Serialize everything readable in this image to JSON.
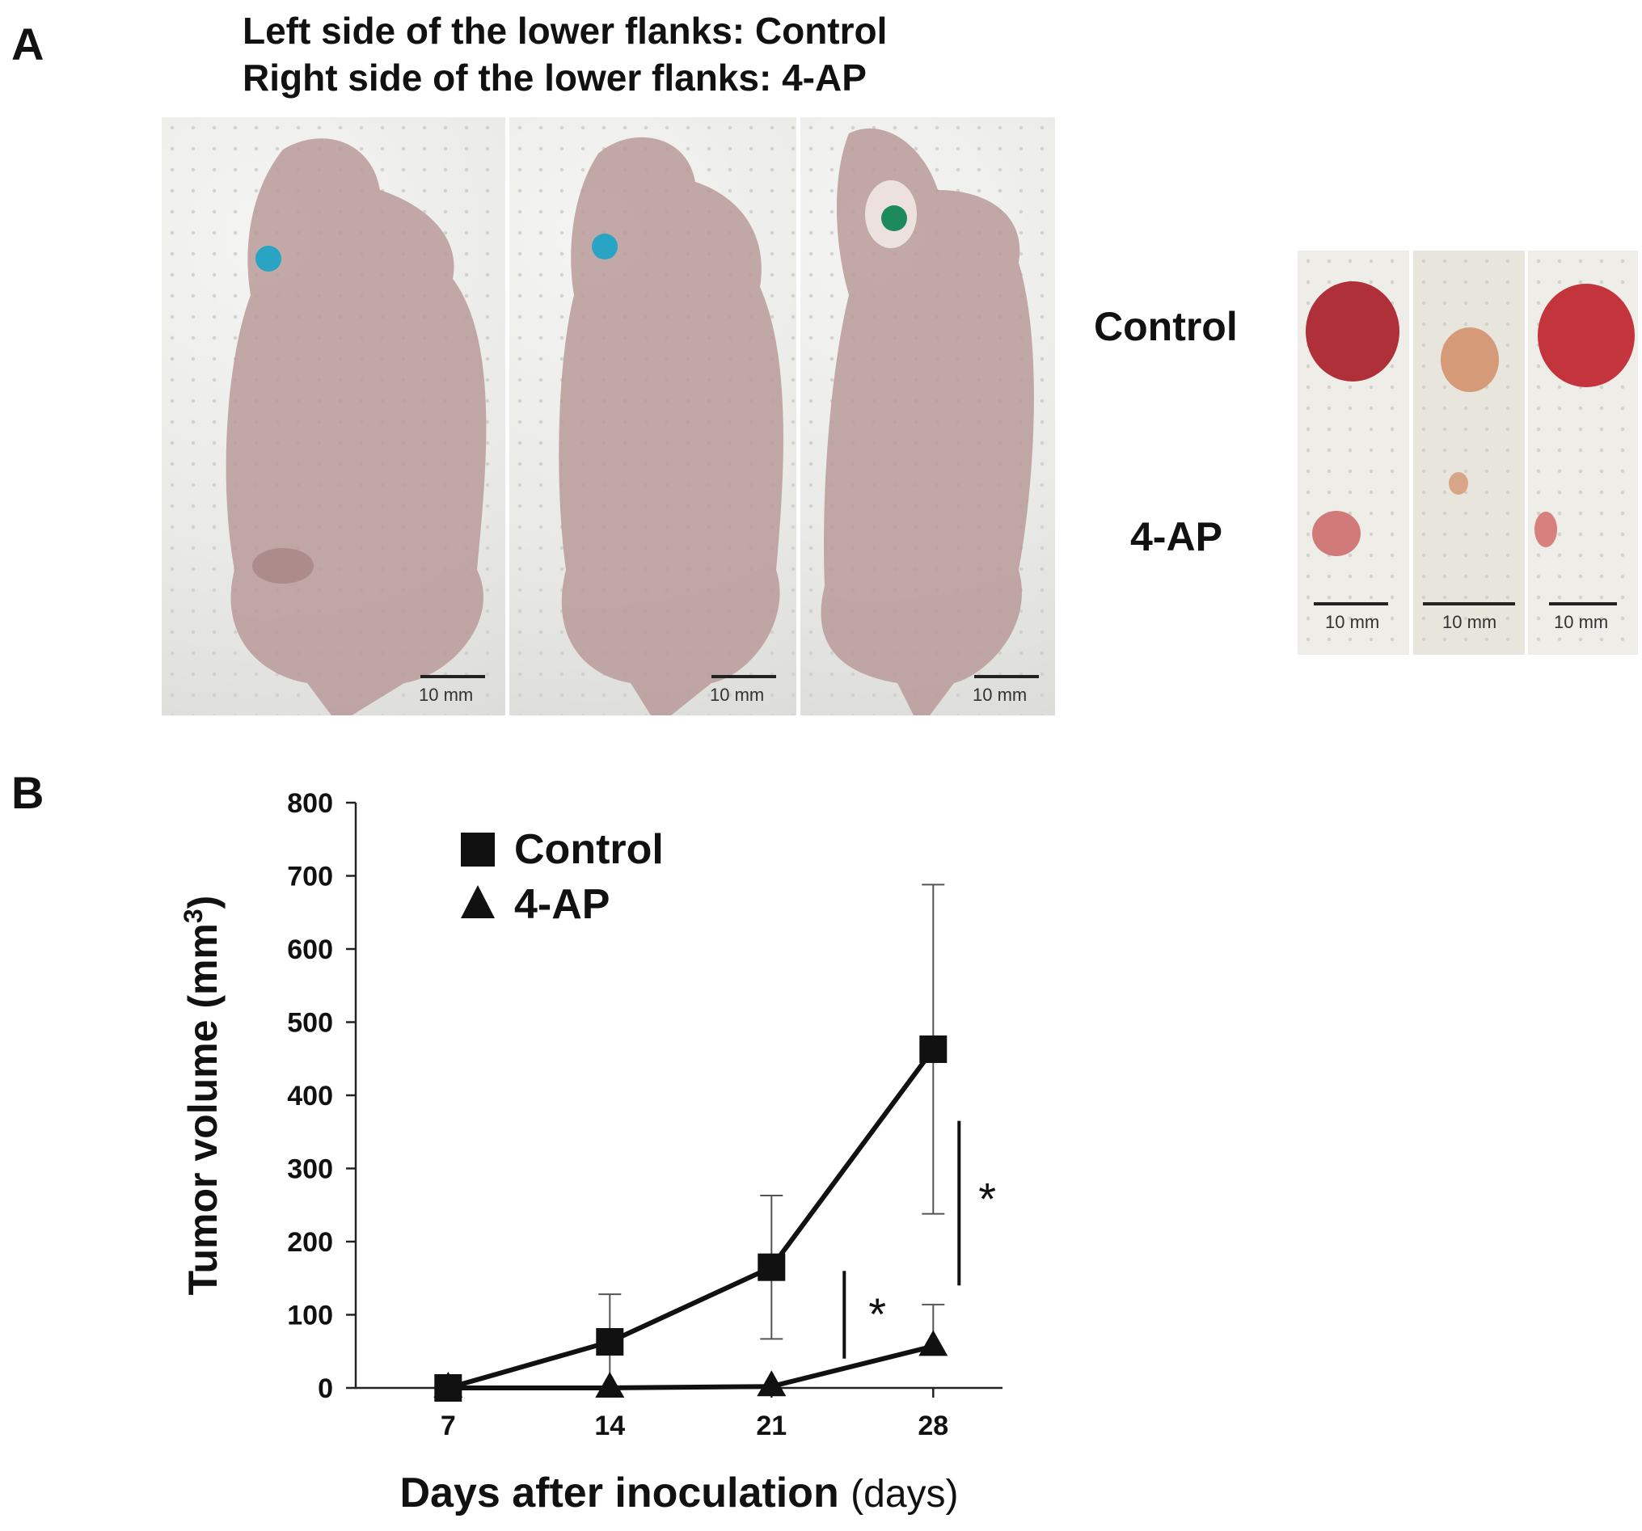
{
  "panel_a": {
    "letter": "A",
    "caption_line1": "Left side of the lower flanks: Control",
    "caption_line2": "Right side of the lower flanks: 4-AP",
    "mouse_photos": [
      {
        "scale_label": "10 mm"
      },
      {
        "scale_label": "10 mm"
      },
      {
        "scale_label": "10 mm"
      }
    ],
    "tumor_row_labels": {
      "control": "Control",
      "treated": "4-AP"
    },
    "tumor_photos": [
      {
        "scale_label": "10 mm"
      },
      {
        "scale_label": "10 mm"
      },
      {
        "scale_label": "10 mm"
      }
    ]
  },
  "panel_b": {
    "letter": "B"
  },
  "chart_data": {
    "type": "line",
    "xlabel": "Days after inoculation",
    "xlabel_unit": "(days)",
    "ylabel": "Tumor volume (mm",
    "ylabel_sup": "3",
    "ylabel_close": ")",
    "ylim": [
      0,
      800
    ],
    "yticks": [
      0,
      100,
      200,
      300,
      400,
      500,
      600,
      700,
      800
    ],
    "x": [
      7,
      14,
      21,
      28
    ],
    "xticks": [
      "7",
      "14",
      "21",
      "28"
    ],
    "legend_position": "top-left",
    "series": [
      {
        "name": "Control",
        "marker": "square",
        "values": [
          0,
          63,
          165,
          463
        ],
        "error": [
          0,
          65,
          98,
          225
        ]
      },
      {
        "name": "4-AP",
        "marker": "triangle",
        "values": [
          0,
          0,
          2,
          57
        ],
        "error": [
          0,
          0,
          0,
          57
        ]
      }
    ],
    "significance": [
      {
        "x_between": [
          21,
          28
        ],
        "range": [
          40,
          160
        ],
        "label": "*"
      },
      {
        "x_after": 28,
        "range": [
          140,
          365
        ],
        "label": "*"
      }
    ]
  }
}
